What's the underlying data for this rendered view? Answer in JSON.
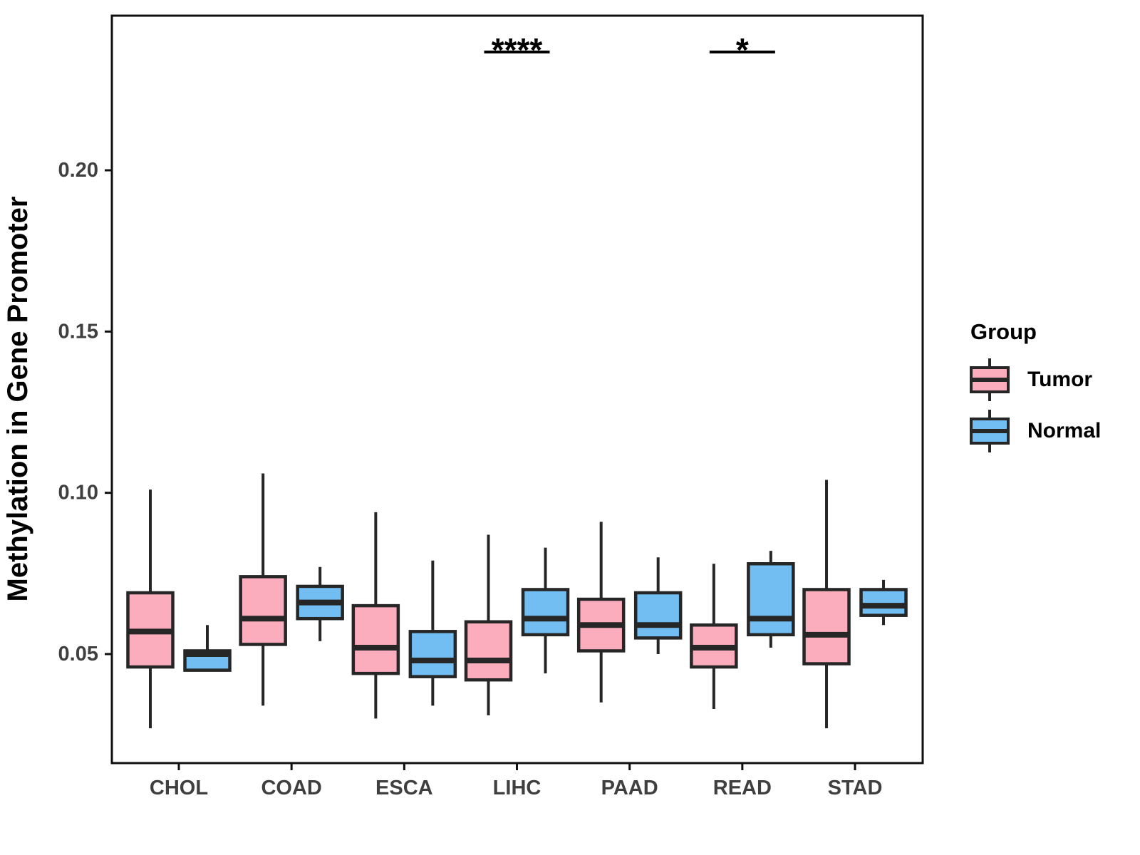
{
  "chart_data": {
    "type": "grouped_boxplot",
    "title": "",
    "xlabel": "",
    "ylabel": "Methylation in Gene Promoter",
    "categories": [
      "CHOL",
      "COAD",
      "ESCA",
      "LIHC",
      "PAAD",
      "READ",
      "STAD"
    ],
    "y_ticks": [
      0.05,
      0.1,
      0.15,
      0.2
    ],
    "y_tick_labels": [
      "0.05",
      "0.10",
      "0.15",
      "0.20"
    ],
    "ylim": [
      0.016,
      0.248
    ],
    "grid": false,
    "legend": {
      "title": "Group",
      "position": "right"
    },
    "groups": [
      {
        "name": "Tumor",
        "color": "#FCADBD"
      },
      {
        "name": "Normal",
        "color": "#72BDF2"
      }
    ],
    "series": [
      {
        "group": "Tumor",
        "boxes": [
          {
            "category": "CHOL",
            "low": 0.027,
            "q1": 0.046,
            "median": 0.057,
            "q3": 0.069,
            "high": 0.101
          },
          {
            "category": "COAD",
            "low": 0.034,
            "q1": 0.053,
            "median": 0.061,
            "q3": 0.074,
            "high": 0.106
          },
          {
            "category": "ESCA",
            "low": 0.03,
            "q1": 0.044,
            "median": 0.052,
            "q3": 0.065,
            "high": 0.094
          },
          {
            "category": "LIHC",
            "low": 0.031,
            "q1": 0.042,
            "median": 0.048,
            "q3": 0.06,
            "high": 0.087
          },
          {
            "category": "PAAD",
            "low": 0.035,
            "q1": 0.051,
            "median": 0.059,
            "q3": 0.067,
            "high": 0.091
          },
          {
            "category": "READ",
            "low": 0.033,
            "q1": 0.046,
            "median": 0.052,
            "q3": 0.059,
            "high": 0.078
          },
          {
            "category": "STAD",
            "low": 0.027,
            "q1": 0.047,
            "median": 0.056,
            "q3": 0.07,
            "high": 0.104
          }
        ]
      },
      {
        "group": "Normal",
        "boxes": [
          {
            "category": "CHOL",
            "low": 0.045,
            "q1": 0.045,
            "median": 0.05,
            "q3": 0.051,
            "high": 0.059
          },
          {
            "category": "COAD",
            "low": 0.054,
            "q1": 0.061,
            "median": 0.066,
            "q3": 0.071,
            "high": 0.077
          },
          {
            "category": "ESCA",
            "low": 0.034,
            "q1": 0.043,
            "median": 0.048,
            "q3": 0.057,
            "high": 0.079
          },
          {
            "category": "LIHC",
            "low": 0.044,
            "q1": 0.056,
            "median": 0.061,
            "q3": 0.07,
            "high": 0.083
          },
          {
            "category": "PAAD",
            "low": 0.05,
            "q1": 0.055,
            "median": 0.059,
            "q3": 0.069,
            "high": 0.08
          },
          {
            "category": "READ",
            "low": 0.052,
            "q1": 0.056,
            "median": 0.061,
            "q3": 0.078,
            "high": 0.082
          },
          {
            "category": "STAD",
            "low": 0.059,
            "q1": 0.062,
            "median": 0.065,
            "q3": 0.07,
            "high": 0.073
          }
        ]
      }
    ],
    "annotations": [
      {
        "category": "LIHC",
        "label": "****"
      },
      {
        "category": "READ",
        "label": "*"
      }
    ],
    "colors": {
      "box_stroke": "#262626",
      "axis_text": "#3F3F3F",
      "panel_border": "#101010",
      "significance": "#000000"
    }
  }
}
